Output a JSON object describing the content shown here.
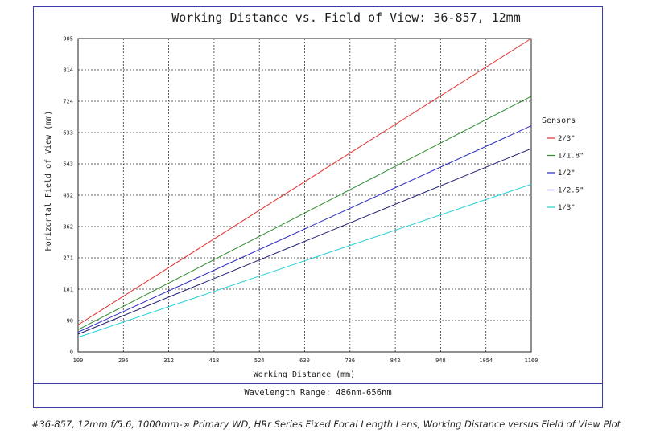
{
  "chart_data": {
    "type": "line",
    "title": "Working Distance vs. Field of View: 36-857, 12mm",
    "xlabel": "Working Distance (mm)",
    "ylabel": "Horizontal Field of View (mm)",
    "xlim": [
      100,
      1160
    ],
    "ylim": [
      0,
      905
    ],
    "x_ticks": [
      "100",
      "206",
      "312",
      "418",
      "524",
      "630",
      "736",
      "842",
      "948",
      "1054",
      "1160"
    ],
    "y_ticks": [
      "0",
      "90",
      "181",
      "271",
      "362",
      "452",
      "543",
      "633",
      "724",
      "814",
      "905"
    ],
    "grid": true,
    "legend_title": "Sensors",
    "legend_position": "right",
    "series": [
      {
        "name": "2/3\"",
        "color": "#e03030",
        "x": [
          100,
          1160
        ],
        "y": [
          78,
          905
        ]
      },
      {
        "name": "1/1.8\"",
        "color": "#2e8b2e",
        "x": [
          100,
          1160
        ],
        "y": [
          64,
          738
        ]
      },
      {
        "name": "1/2\"",
        "color": "#2828c0",
        "x": [
          100,
          1160
        ],
        "y": [
          57,
          653
        ]
      },
      {
        "name": "1/2.5\"",
        "color": "#1e1e70",
        "x": [
          100,
          1160
        ],
        "y": [
          51,
          587
        ]
      },
      {
        "name": "1/3\"",
        "color": "#20d0d8",
        "x": [
          100,
          1160
        ],
        "y": [
          42,
          484
        ]
      }
    ]
  },
  "footer": {
    "wavelength": "Wavelength Range: 486nm-656nm"
  },
  "caption": "#36-857, 12mm f/5.6, 1000mm-∞ Primary WD, HRr Series Fixed Focal Length Lens, Working Distance versus Field of View Plot"
}
